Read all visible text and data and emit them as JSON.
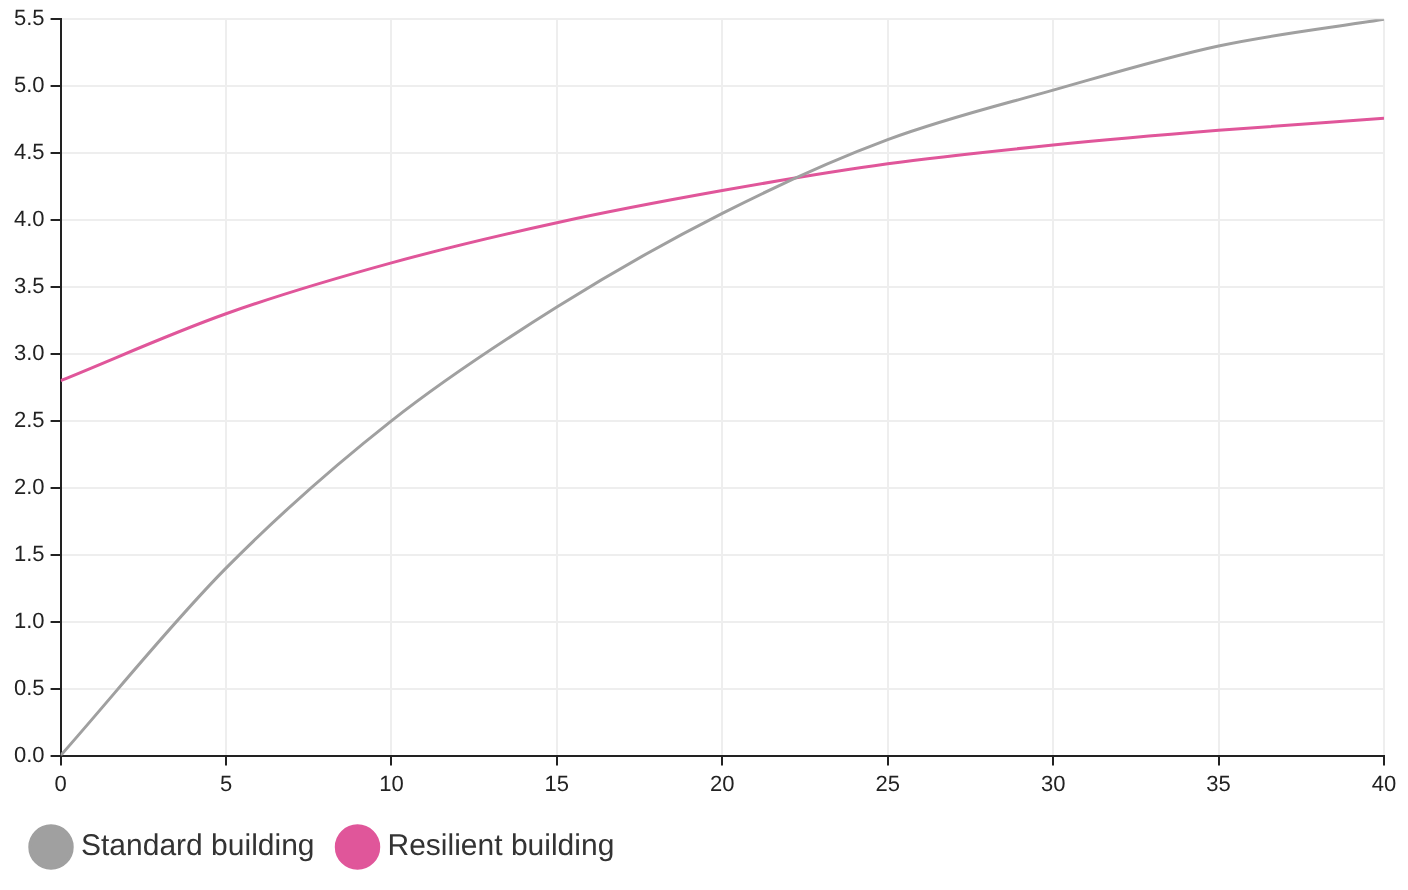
{
  "chart_data": {
    "type": "line",
    "x": [
      0,
      5,
      10,
      15,
      20,
      25,
      30,
      35,
      40
    ],
    "series": [
      {
        "name": "Standard building",
        "color": "#a0a0a0",
        "values": [
          0,
          1.4,
          2.5,
          3.35,
          4.05,
          4.6,
          4.97,
          5.3,
          5.5
        ]
      },
      {
        "name": "Resilient building",
        "color": "#e0569a",
        "values": [
          2.8,
          3.3,
          3.68,
          3.98,
          4.22,
          4.42,
          4.56,
          4.67,
          4.76
        ]
      }
    ],
    "xlim": [
      0,
      40
    ],
    "xticks": [
      0,
      5,
      10,
      15,
      20,
      25,
      30,
      35,
      40
    ],
    "ylim": [
      0,
      5.5
    ],
    "yticks": [
      {
        "value": 0,
        "label": "0.0"
      },
      {
        "value": 0.5,
        "label": "0.5"
      },
      {
        "value": 1,
        "label": "1.0"
      },
      {
        "value": 1.5,
        "label": "1.5"
      },
      {
        "value": 2,
        "label": "2.0"
      },
      {
        "value": 2.5,
        "label": "2.5"
      },
      {
        "value": 3,
        "label": "3.0"
      },
      {
        "value": 3.5,
        "label": "3.5"
      },
      {
        "value": 4,
        "label": "4.0"
      },
      {
        "value": 4.5,
        "label": "4.5"
      },
      {
        "value": 5,
        "label": "5.0"
      },
      {
        "value": 5.5,
        "label": "5.5"
      }
    ],
    "grid": true,
    "legend": "bottom left",
    "marker": "none",
    "line_style": "solid"
  }
}
